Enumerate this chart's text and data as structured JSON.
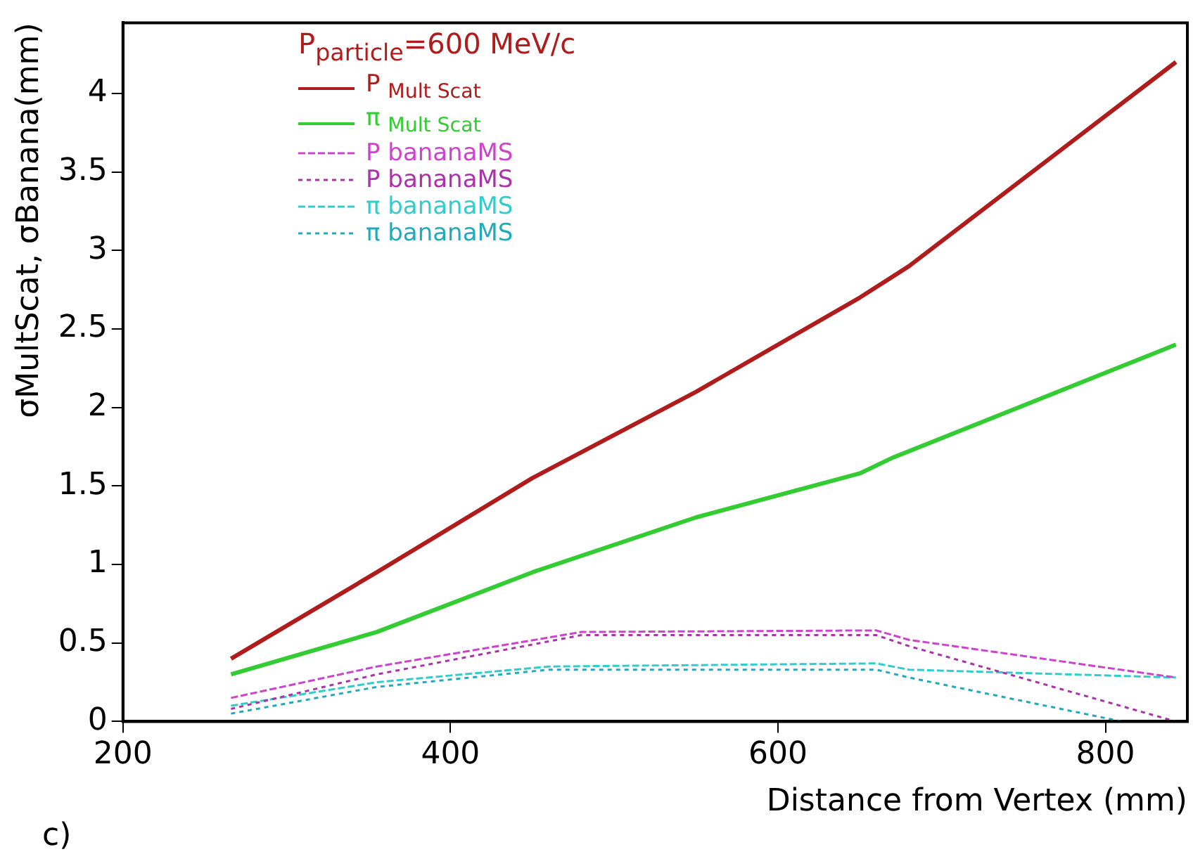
{
  "chart_data": {
    "type": "line",
    "xlabel": "Distance from Vertex (mm)",
    "ylabel": "σMultScat, σBanana(mm)",
    "legend_title": "P$_{particle}$=600 MeV/c",
    "annotations": [
      "c)"
    ],
    "xlim": [
      200,
      850
    ],
    "xticks": [
      200,
      400,
      600,
      800
    ],
    "ylim": [
      0,
      4.45
    ],
    "yticks": [
      0,
      0.5,
      1,
      1.5,
      2,
      2.5,
      3,
      3.5,
      4
    ],
    "grid": false,
    "legend": "top left",
    "marker": "none",
    "series": [
      {
        "name": "P $_{Mult Scat}$",
        "color": "#b01c1c",
        "line_style": "solid",
        "x": [
          266,
          355,
          450,
          550,
          650,
          680,
          843
        ],
        "values": [
          0.4,
          0.95,
          1.55,
          2.1,
          2.7,
          2.9,
          4.2
        ]
      },
      {
        "name": "π $_{Mult Scat}$",
        "color": "#33cc33",
        "line_style": "solid",
        "x": [
          266,
          355,
          450,
          550,
          650,
          670,
          843
        ],
        "values": [
          0.3,
          0.57,
          0.95,
          1.3,
          1.58,
          1.68,
          2.4
        ]
      },
      {
        "name": "P bananaMS",
        "color": "#cc44cc",
        "line_style": "dashed",
        "x": [
          266,
          355,
          480,
          660,
          680,
          843
        ],
        "values": [
          0.15,
          0.35,
          0.57,
          0.58,
          0.52,
          0.28
        ]
      },
      {
        "name": "P bananaMS",
        "color": "#aa33aa",
        "line_style": "dotted",
        "x": [
          266,
          355,
          480,
          660,
          680,
          843
        ],
        "values": [
          0.08,
          0.3,
          0.55,
          0.55,
          0.48,
          0.0
        ]
      },
      {
        "name": "π bananaMS",
        "color": "#33cccc",
        "line_style": "dashed",
        "x": [
          266,
          355,
          460,
          660,
          680,
          843
        ],
        "values": [
          0.1,
          0.25,
          0.35,
          0.37,
          0.33,
          0.28
        ]
      },
      {
        "name": "π bananaMS",
        "color": "#22aabb",
        "line_style": "dotted",
        "x": [
          266,
          355,
          460,
          660,
          680,
          810
        ],
        "values": [
          0.05,
          0.22,
          0.33,
          0.33,
          0.28,
          0.0
        ]
      }
    ]
  }
}
